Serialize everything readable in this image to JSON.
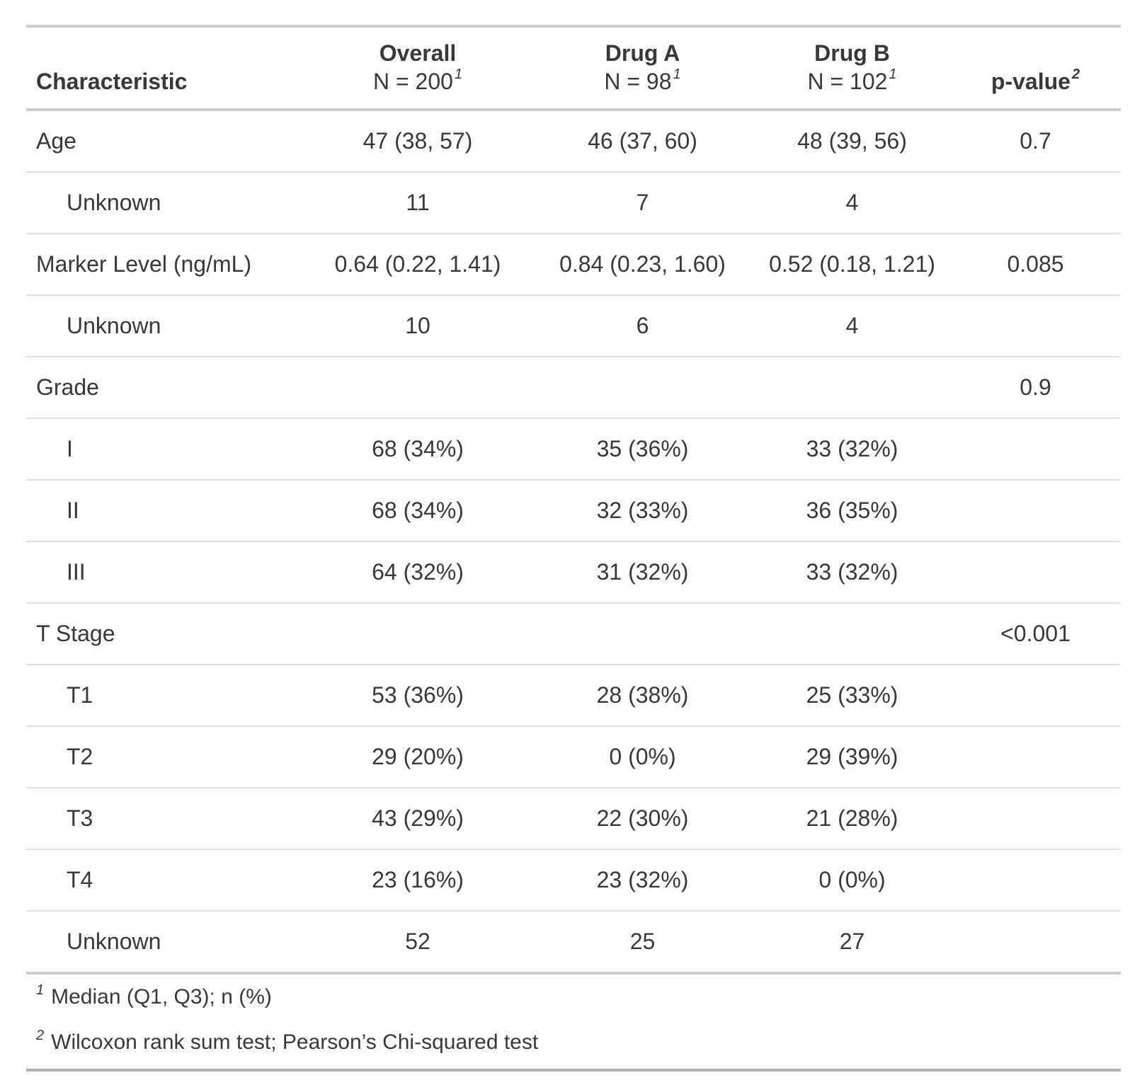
{
  "colors": {
    "background": "#ffffff",
    "text": "#383838",
    "border_strong": "#cdcdcd",
    "border_row": "#e0e0e0",
    "border_bottom": "#b0b0b0"
  },
  "chart_data": {
    "type": "table",
    "header": {
      "characteristic": "Characteristic",
      "overall": {
        "title": "Overall",
        "n": "N = 200",
        "footnote_mark": "1"
      },
      "drug_a": {
        "title": "Drug A",
        "n": "N = 98",
        "footnote_mark": "1"
      },
      "drug_b": {
        "title": "Drug B",
        "n": "N = 102",
        "footnote_mark": "1"
      },
      "p_value": {
        "title": "p-value",
        "footnote_mark": "2"
      }
    },
    "rows": [
      {
        "label": "Age",
        "indent": false,
        "overall": "47 (38, 57)",
        "drug_a": "46 (37, 60)",
        "drug_b": "48 (39, 56)",
        "p_value": "0.7"
      },
      {
        "label": "Unknown",
        "indent": true,
        "overall": "11",
        "drug_a": "7",
        "drug_b": "4",
        "p_value": ""
      },
      {
        "label": "Marker Level (ng/mL)",
        "indent": false,
        "overall": "0.64 (0.22, 1.41)",
        "drug_a": "0.84 (0.23, 1.60)",
        "drug_b": "0.52 (0.18, 1.21)",
        "p_value": "0.085"
      },
      {
        "label": "Unknown",
        "indent": true,
        "overall": "10",
        "drug_a": "6",
        "drug_b": "4",
        "p_value": ""
      },
      {
        "label": "Grade",
        "indent": false,
        "overall": "",
        "drug_a": "",
        "drug_b": "",
        "p_value": "0.9"
      },
      {
        "label": "I",
        "indent": true,
        "overall": "68 (34%)",
        "drug_a": "35 (36%)",
        "drug_b": "33 (32%)",
        "p_value": ""
      },
      {
        "label": "II",
        "indent": true,
        "overall": "68 (34%)",
        "drug_a": "32 (33%)",
        "drug_b": "36 (35%)",
        "p_value": ""
      },
      {
        "label": "III",
        "indent": true,
        "overall": "64 (32%)",
        "drug_a": "31 (32%)",
        "drug_b": "33 (32%)",
        "p_value": ""
      },
      {
        "label": "T Stage",
        "indent": false,
        "overall": "",
        "drug_a": "",
        "drug_b": "",
        "p_value": "<0.001"
      },
      {
        "label": "T1",
        "indent": true,
        "overall": "53 (36%)",
        "drug_a": "28 (38%)",
        "drug_b": "25 (33%)",
        "p_value": ""
      },
      {
        "label": "T2",
        "indent": true,
        "overall": "29 (20%)",
        "drug_a": "0 (0%)",
        "drug_b": "29 (39%)",
        "p_value": ""
      },
      {
        "label": "T3",
        "indent": true,
        "overall": "43 (29%)",
        "drug_a": "22 (30%)",
        "drug_b": "21 (28%)",
        "p_value": ""
      },
      {
        "label": "T4",
        "indent": true,
        "overall": "23 (16%)",
        "drug_a": "23 (32%)",
        "drug_b": "0 (0%)",
        "p_value": ""
      },
      {
        "label": "Unknown",
        "indent": true,
        "overall": "52",
        "drug_a": "25",
        "drug_b": "27",
        "p_value": ""
      }
    ],
    "footnotes": [
      {
        "mark": "1",
        "text": "Median (Q1, Q3); n (%)"
      },
      {
        "mark": "2",
        "text": "Wilcoxon rank sum test; Pearson’s Chi-squared test"
      }
    ]
  }
}
